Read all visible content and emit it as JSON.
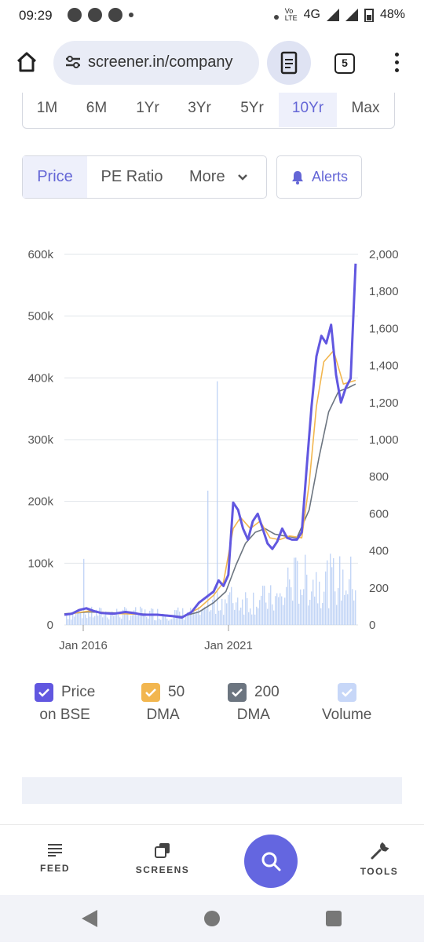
{
  "status_bar": {
    "time": "09:29",
    "network": "4G",
    "battery": "48%"
  },
  "browser": {
    "url": "screener.in/company",
    "tab_count": "5"
  },
  "range_tabs": [
    "1M",
    "6M",
    "1Yr",
    "3Yr",
    "5Yr",
    "10Yr",
    "Max"
  ],
  "active_range": "10Yr",
  "mode_tabs": {
    "price": "Price",
    "pe_ratio": "PE Ratio",
    "more": "More"
  },
  "alerts_label": "Alerts",
  "chart_data": {
    "type": "line",
    "left_axis_ticks": [
      "600k",
      "500k",
      "400k",
      "300k",
      "200k",
      "100k",
      "0"
    ],
    "right_axis_ticks": [
      "2,000",
      "1,800",
      "1,600",
      "1,400",
      "1,200",
      "1,000",
      "800",
      "600",
      "400",
      "200",
      "0"
    ],
    "x_ticks": [
      "Jan 2016",
      "Jan 2021"
    ],
    "left_ylim": [
      0,
      600000
    ],
    "right_ylim": [
      0,
      2000
    ],
    "series": [
      {
        "name": "Price on BSE",
        "color": "#6157e0",
        "points": [
          [
            0.0,
            55
          ],
          [
            0.03,
            60
          ],
          [
            0.06,
            80
          ],
          [
            0.09,
            90
          ],
          [
            0.12,
            75
          ],
          [
            0.15,
            65
          ],
          [
            0.2,
            60
          ],
          [
            0.25,
            70
          ],
          [
            0.28,
            65
          ],
          [
            0.32,
            55
          ],
          [
            0.38,
            55
          ],
          [
            0.44,
            48
          ],
          [
            0.48,
            40
          ],
          [
            0.52,
            70
          ],
          [
            0.55,
            120
          ],
          [
            0.58,
            150
          ],
          [
            0.61,
            180
          ],
          [
            0.63,
            240
          ],
          [
            0.65,
            210
          ],
          [
            0.67,
            270
          ],
          [
            0.69,
            660
          ],
          [
            0.71,
            620
          ],
          [
            0.73,
            520
          ],
          [
            0.75,
            460
          ],
          [
            0.77,
            560
          ],
          [
            0.79,
            600
          ],
          [
            0.81,
            520
          ],
          [
            0.83,
            440
          ],
          [
            0.85,
            410
          ],
          [
            0.87,
            450
          ],
          [
            0.89,
            520
          ],
          [
            0.91,
            470
          ],
          [
            0.93,
            460
          ],
          [
            0.95,
            460
          ],
          [
            0.97,
            500
          ],
          [
            0.99,
            850
          ],
          [
            1.01,
            1180
          ],
          [
            1.03,
            1450
          ],
          [
            1.05,
            1560
          ],
          [
            1.07,
            1520
          ],
          [
            1.09,
            1620
          ],
          [
            1.11,
            1350
          ],
          [
            1.13,
            1200
          ],
          [
            1.15,
            1280
          ],
          [
            1.17,
            1330
          ],
          [
            1.19,
            1950
          ]
        ]
      },
      {
        "name": "50 DMA",
        "color": "#f2b64f",
        "points": [
          [
            0.0,
            55
          ],
          [
            0.1,
            75
          ],
          [
            0.2,
            62
          ],
          [
            0.3,
            58
          ],
          [
            0.4,
            52
          ],
          [
            0.48,
            42
          ],
          [
            0.55,
            90
          ],
          [
            0.61,
            160
          ],
          [
            0.65,
            230
          ],
          [
            0.69,
            520
          ],
          [
            0.72,
            580
          ],
          [
            0.76,
            520
          ],
          [
            0.8,
            560
          ],
          [
            0.84,
            470
          ],
          [
            0.88,
            460
          ],
          [
            0.92,
            480
          ],
          [
            0.97,
            470
          ],
          [
            1.0,
            760
          ],
          [
            1.03,
            1180
          ],
          [
            1.06,
            1420
          ],
          [
            1.1,
            1480
          ],
          [
            1.14,
            1300
          ],
          [
            1.19,
            1320
          ]
        ]
      },
      {
        "name": "200 DMA",
        "color": "#6c7580",
        "points": [
          [
            0.0,
            60
          ],
          [
            0.1,
            70
          ],
          [
            0.2,
            65
          ],
          [
            0.3,
            60
          ],
          [
            0.4,
            55
          ],
          [
            0.48,
            45
          ],
          [
            0.55,
            70
          ],
          [
            0.61,
            120
          ],
          [
            0.66,
            180
          ],
          [
            0.7,
            320
          ],
          [
            0.74,
            440
          ],
          [
            0.78,
            500
          ],
          [
            0.82,
            520
          ],
          [
            0.86,
            490
          ],
          [
            0.9,
            480
          ],
          [
            0.95,
            470
          ],
          [
            1.0,
            620
          ],
          [
            1.04,
            900
          ],
          [
            1.08,
            1150
          ],
          [
            1.12,
            1260
          ],
          [
            1.16,
            1280
          ],
          [
            1.19,
            1300
          ]
        ]
      },
      {
        "name": "Volume",
        "color": "#b9cff5"
      }
    ]
  },
  "legend": [
    {
      "line1": "Price",
      "line2": "on BSE",
      "color": "#6157e0"
    },
    {
      "line1": "50",
      "line2": "DMA",
      "color": "#f2b64f"
    },
    {
      "line1": "200",
      "line2": "DMA",
      "color": "#6c7580"
    },
    {
      "line1": "",
      "line2": "Volume",
      "color": "#b9cff5"
    }
  ],
  "bottom_nav": {
    "feed": "FEED",
    "screens": "SCREENS",
    "tools": "TOOLS"
  }
}
